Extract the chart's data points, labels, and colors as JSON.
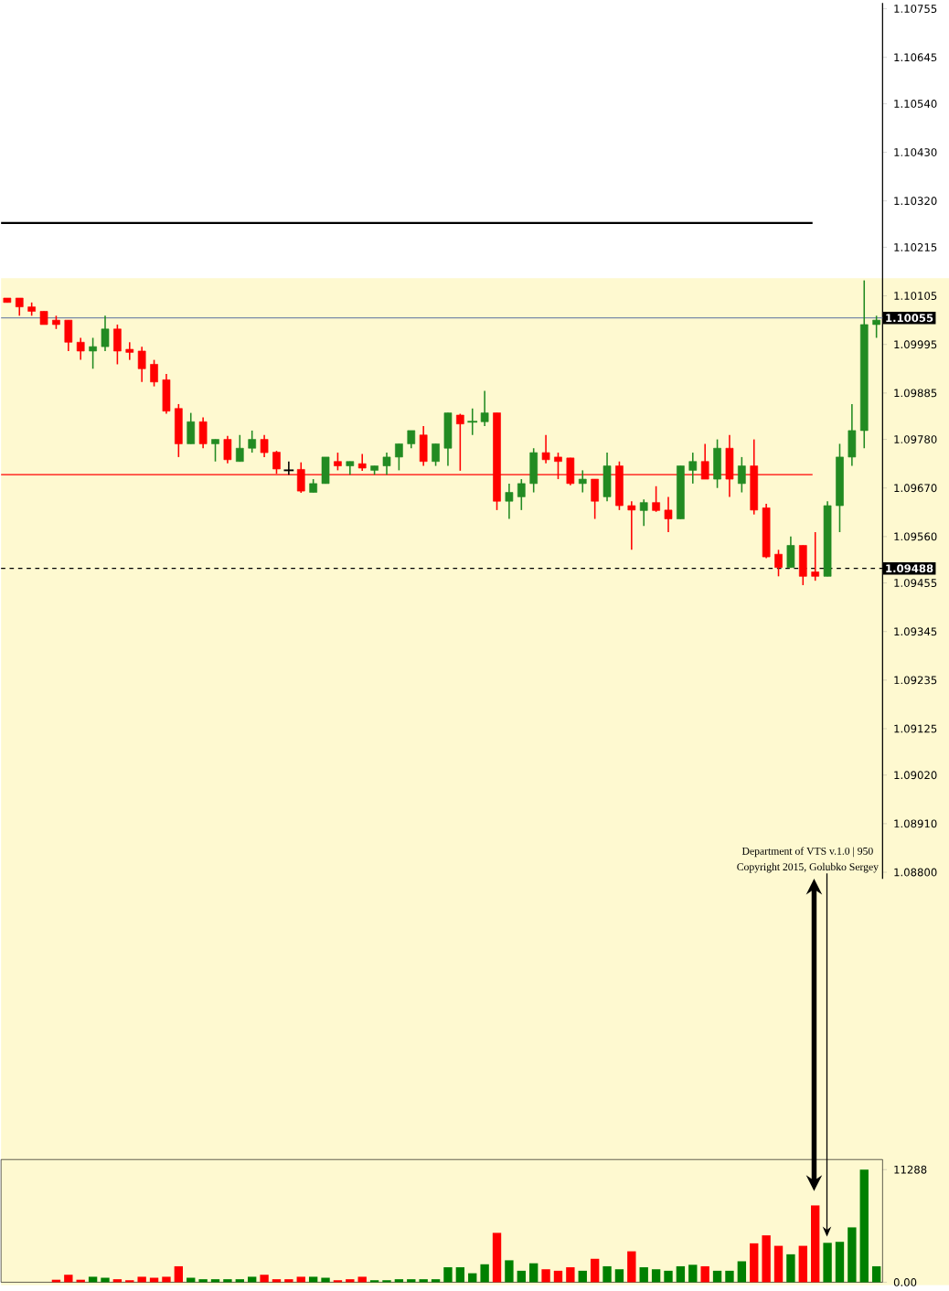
{
  "chart_data": [
    {
      "type": "candlestick",
      "categories": [
        null,
        null,
        null,
        null,
        null,
        null,
        null,
        null,
        null,
        null,
        null,
        null,
        null,
        null,
        null,
        null,
        null,
        null,
        null,
        null,
        null,
        null,
        null,
        null,
        null,
        null,
        null,
        null,
        null,
        null,
        null,
        null,
        null,
        null,
        null,
        null,
        null,
        null,
        null,
        null,
        null,
        null,
        null,
        null,
        null,
        null,
        null,
        null,
        null,
        null,
        null,
        null,
        null,
        null,
        null,
        null,
        null,
        null,
        null,
        null,
        null,
        null,
        null,
        null,
        null,
        null,
        null,
        null,
        null,
        null,
        null,
        null
      ],
      "ohlc": [
        [
          1.101,
          1.101,
          1.1009,
          1.1009
        ],
        [
          1.101,
          1.101,
          1.1006,
          1.1008
        ],
        [
          1.1008,
          1.1009,
          1.1006,
          1.1007
        ],
        [
          1.1007,
          1.1007,
          1.1004,
          1.1004
        ],
        [
          1.1005,
          1.1006,
          1.1003,
          1.1004
        ],
        [
          1.1005,
          1.1005,
          1.0998,
          1.1
        ],
        [
          1.1,
          1.1001,
          1.0996,
          1.0998
        ],
        [
          1.0998,
          1.1001,
          1.0994,
          1.0999
        ],
        [
          1.0999,
          1.1006,
          1.0998,
          1.1003
        ],
        [
          1.1003,
          1.1004,
          1.0995,
          1.0998
        ],
        [
          1.09984,
          1.1,
          1.0996,
          1.09977
        ],
        [
          1.0998,
          1.0999,
          1.0991,
          1.0994
        ],
        [
          1.0995,
          1.0996,
          1.099,
          1.0991
        ],
        [
          1.09915,
          1.09928,
          1.09838,
          1.09844
        ],
        [
          1.0985,
          1.0986,
          1.0974,
          1.0977
        ],
        [
          1.0977,
          1.0984,
          1.0977,
          1.0982
        ],
        [
          1.0982,
          1.0983,
          1.0976,
          1.0977
        ],
        [
          1.0977,
          1.0978,
          1.0973,
          1.0978
        ],
        [
          1.0978,
          1.09788,
          1.09726,
          1.09734
        ],
        [
          1.0973,
          1.0979,
          1.0973,
          1.0976
        ],
        [
          1.0976,
          1.098,
          1.0975,
          1.0978
        ],
        [
          1.0978,
          1.0979,
          1.0974,
          1.0975
        ],
        [
          1.09751,
          1.09754,
          1.09702,
          1.09713
        ],
        [
          1.0971,
          1.0973,
          1.097,
          1.0971
        ],
        [
          1.09712,
          1.09728,
          1.09659,
          1.09663
        ],
        [
          1.0966,
          1.0969,
          1.0966,
          1.0968
        ],
        [
          1.0968,
          1.0974,
          1.0968,
          1.0974
        ],
        [
          1.0973,
          1.0975,
          1.0971,
          1.0972
        ],
        [
          1.0972,
          1.0973,
          1.097,
          1.0973
        ],
        [
          1.09725,
          1.09747,
          1.09709,
          1.09715
        ],
        [
          1.0971,
          1.0972,
          1.097,
          1.0972
        ],
        [
          1.0972,
          1.0975,
          1.097,
          1.0974
        ],
        [
          1.0974,
          1.0977,
          1.0971,
          1.0977
        ],
        [
          1.0977,
          1.098,
          1.0976,
          1.098
        ],
        [
          1.0979,
          1.0981,
          1.0972,
          1.0973
        ],
        [
          1.0973,
          1.0977,
          1.0972,
          1.0977
        ],
        [
          1.0976,
          1.0984,
          1.0972,
          1.0984
        ],
        [
          1.09835,
          1.09838,
          1.09709,
          1.09815
        ],
        [
          1.0982,
          1.0985,
          1.0979,
          1.0982
        ],
        [
          1.0982,
          1.0989,
          1.0981,
          1.0984
        ],
        [
          1.0984,
          1.0984,
          1.0962,
          1.0964
        ],
        [
          1.0964,
          1.0968,
          1.096,
          1.0966
        ],
        [
          1.0965,
          1.0969,
          1.0962,
          1.0968
        ],
        [
          1.0968,
          1.0976,
          1.0966,
          1.0975
        ],
        [
          1.0975,
          1.0979,
          1.09726,
          1.09734
        ],
        [
          1.0974,
          1.0975,
          1.0969,
          1.0973
        ],
        [
          1.09738,
          1.09738,
          1.09676,
          1.0968
        ],
        [
          1.0968,
          1.0971,
          1.0966,
          1.0969
        ],
        [
          1.0969,
          1.0969,
          1.096,
          1.0964
        ],
        [
          1.0965,
          1.0975,
          1.0964,
          1.0972
        ],
        [
          1.0972,
          1.0973,
          1.0962,
          1.0963
        ],
        [
          1.0963,
          1.0964,
          1.0953,
          1.0962
        ],
        [
          1.09619,
          1.09644,
          1.09584,
          1.09637
        ],
        [
          1.09637,
          1.09674,
          1.09616,
          1.09619
        ],
        [
          1.0962,
          1.0965,
          1.0957,
          1.096
        ],
        [
          1.096,
          1.0972,
          1.096,
          1.0972
        ],
        [
          1.0971,
          1.0975,
          1.0968,
          1.0973
        ],
        [
          1.0973,
          1.0977,
          1.0969,
          1.0969
        ],
        [
          1.0969,
          1.0978,
          1.0967,
          1.0976
        ],
        [
          1.0976,
          1.0979,
          1.0965,
          1.0969
        ],
        [
          1.0968,
          1.0974,
          1.0966,
          1.0972
        ],
        [
          1.0972,
          1.0978,
          1.0961,
          1.0962
        ],
        [
          1.09625,
          1.09634,
          1.09511,
          1.09514
        ],
        [
          1.0952,
          1.0953,
          1.0947,
          1.0949
        ],
        [
          1.0949,
          1.0956,
          1.0949,
          1.0954
        ],
        [
          1.0954,
          1.0954,
          1.0945,
          1.0947
        ],
        [
          1.0948,
          1.0957,
          1.0946,
          1.0947
        ],
        [
          1.0947,
          1.0964,
          1.0947,
          1.0963
        ],
        [
          1.0963,
          1.0977,
          1.0957,
          1.0974
        ],
        [
          1.0974,
          1.0986,
          1.0972,
          1.098
        ],
        [
          1.098,
          1.1014,
          1.0976,
          1.1004
        ],
        [
          1.1004,
          1.1006,
          1.1001,
          1.1005
        ]
      ],
      "colors": [
        "#ff0000",
        "#ff0000",
        "#ff0000",
        "#ff0000",
        "#ff0000",
        "#ff0000",
        "#ff0000",
        "#228b22",
        "#228b22",
        "#ff0000",
        "#ff0000",
        "#ff0000",
        "#ff0000",
        "#ff0000",
        "#ff0000",
        "#228b22",
        "#ff0000",
        "#228b22",
        "#ff0000",
        "#228b22",
        "#228b22",
        "#ff0000",
        "#ff0000",
        "#000000",
        "#ff0000",
        "#228b22",
        "#228b22",
        "#ff0000",
        "#228b22",
        "#ff0000",
        "#228b22",
        "#228b22",
        "#228b22",
        "#228b22",
        "#ff0000",
        "#228b22",
        "#228b22",
        "#ff0000",
        "#228b22",
        "#228b22",
        "#ff0000",
        "#228b22",
        "#228b22",
        "#228b22",
        "#ff0000",
        "#ff0000",
        "#ff0000",
        "#228b22",
        "#ff0000",
        "#228b22",
        "#ff0000",
        "#ff0000",
        "#228b22",
        "#ff0000",
        "#ff0000",
        "#228b22",
        "#228b22",
        "#ff0000",
        "#228b22",
        "#ff0000",
        "#228b22",
        "#ff0000",
        "#ff0000",
        "#ff0000",
        "#228b22",
        "#ff0000",
        "#ff0000",
        "#228b22",
        "#228b22",
        "#228b22",
        "#228b22",
        "#228b22"
      ],
      "ylim": [
        1.08785,
        1.10768
      ],
      "yticks": [
        {
          "value": 1.10755,
          "label": "1.10755"
        },
        {
          "value": 1.10645,
          "label": "1.10645"
        },
        {
          "value": 1.1054,
          "label": "1.10540"
        },
        {
          "value": 1.1043,
          "label": "1.10430"
        },
        {
          "value": 1.1032,
          "label": "1.10320"
        },
        {
          "value": 1.10215,
          "label": "1.10215"
        },
        {
          "value": 1.10105,
          "label": "1.10105"
        },
        {
          "value": 1.09995,
          "label": "1.09995"
        },
        {
          "value": 1.09885,
          "label": "1.09885"
        },
        {
          "value": 1.0978,
          "label": "1.09780"
        },
        {
          "value": 1.0967,
          "label": "1.09670"
        },
        {
          "value": 1.0956,
          "label": "1.09560"
        },
        {
          "value": 1.09455,
          "label": "1.09455"
        },
        {
          "value": 1.09345,
          "label": "1.09345"
        },
        {
          "value": 1.09235,
          "label": "1.09235"
        },
        {
          "value": 1.09125,
          "label": "1.09125"
        },
        {
          "value": 1.0902,
          "label": "1.09020"
        },
        {
          "value": 1.0891,
          "label": "1.08910"
        },
        {
          "value": 1.088,
          "label": "1.08800"
        }
      ],
      "ref_lines": [
        {
          "axis": "y",
          "value": 1.1027,
          "color": "#000000"
        },
        {
          "axis": "y",
          "value": 1.10055,
          "label": "1.10055",
          "color": "#7a8aa8"
        },
        {
          "axis": "y",
          "value": 1.097,
          "color": "#ff0000"
        },
        {
          "axis": "y",
          "value": 1.09488,
          "label": "1.09488",
          "color": "#000000",
          "line_style": "dashed"
        }
      ],
      "annotations": [
        "Department of VTS  v.1.0 | 950",
        "Copyright 2015, Golubko Sergey"
      ]
    },
    {
      "type": "bar",
      "categories": [
        null,
        null,
        null,
        null,
        null,
        null,
        null,
        null,
        null,
        null,
        null,
        null,
        null,
        null,
        null,
        null,
        null,
        null,
        null,
        null,
        null,
        null,
        null,
        null,
        null,
        null,
        null,
        null,
        null,
        null,
        null,
        null,
        null,
        null,
        null,
        null,
        null,
        null,
        null,
        null,
        null,
        null,
        null,
        null,
        null,
        null,
        null,
        null,
        null,
        null,
        null,
        null,
        null,
        null,
        null,
        null,
        null,
        null,
        null,
        null,
        null,
        null,
        null,
        null,
        null,
        null,
        null,
        null,
        null,
        null,
        null,
        null
      ],
      "values": [
        null,
        null,
        null,
        null,
        250,
        750,
        250,
        550,
        450,
        300,
        200,
        550,
        450,
        550,
        1600,
        450,
        300,
        300,
        300,
        300,
        550,
        750,
        300,
        300,
        550,
        550,
        450,
        200,
        300,
        550,
        200,
        200,
        300,
        300,
        300,
        300,
        1500,
        1500,
        900,
        1800,
        4950,
        2200,
        1150,
        1900,
        1300,
        1150,
        1500,
        1150,
        2350,
        1600,
        1300,
        3100,
        1500,
        1300,
        1150,
        1600,
        1750,
        1600,
        1150,
        1150,
        2100,
        3900,
        4700,
        3650,
        2800,
        3650,
        7700,
        3950,
        4050,
        5500,
        11288,
        1600
      ],
      "colors": [
        null,
        null,
        null,
        null,
        "#ff0000",
        "#ff0000",
        "#ff0000",
        "#008000",
        "#008000",
        "#ff0000",
        "#ff0000",
        "#ff0000",
        "#ff0000",
        "#ff0000",
        "#ff0000",
        "#008000",
        "#008000",
        "#008000",
        "#008000",
        "#008000",
        "#008000",
        "#ff0000",
        "#ff0000",
        "#ff0000",
        "#ff0000",
        "#008000",
        "#008000",
        "#ff0000",
        "#ff0000",
        "#ff0000",
        "#008000",
        "#008000",
        "#008000",
        "#008000",
        "#008000",
        "#008000",
        "#008000",
        "#008000",
        "#008000",
        "#008000",
        "#ff0000",
        "#008000",
        "#008000",
        "#008000",
        "#ff0000",
        "#ff0000",
        "#ff0000",
        "#008000",
        "#ff0000",
        "#008000",
        "#008000",
        "#ff0000",
        "#008000",
        "#008000",
        "#008000",
        "#008000",
        "#008000",
        "#ff0000",
        "#008000",
        "#008000",
        "#008000",
        "#ff0000",
        "#ff0000",
        "#ff0000",
        "#008000",
        "#ff0000",
        "#ff0000",
        "#008000",
        "#008000",
        "#008000",
        "#008000",
        "#008000"
      ],
      "ylim": [
        0,
        12300
      ],
      "yticks": [
        {
          "value": 0,
          "label": "0.00"
        },
        11288
      ]
    }
  ]
}
